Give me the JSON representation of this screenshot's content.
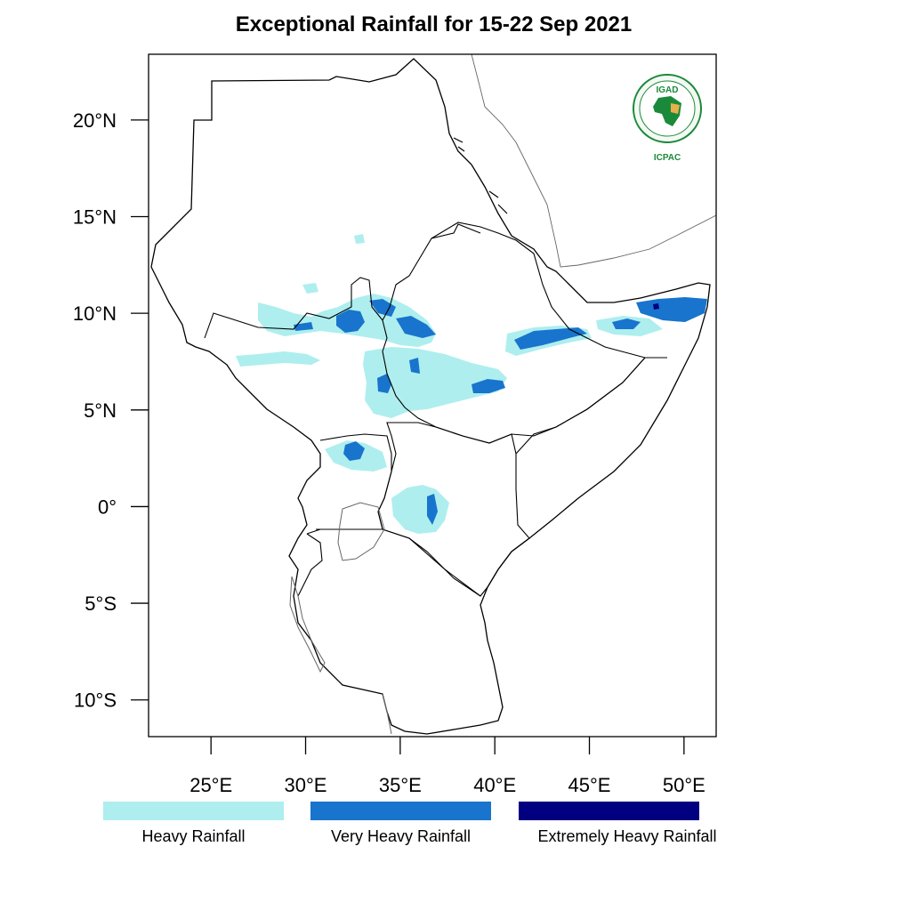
{
  "title": "Exceptional Rainfall for 15-22 Sep 2021",
  "y_ticks": [
    {
      "label": "20°N",
      "lat": 20
    },
    {
      "label": "15°N",
      "lat": 15
    },
    {
      "label": "10°N",
      "lat": 10
    },
    {
      "label": "5°N",
      "lat": 5
    },
    {
      "label": "0°",
      "lat": 0
    },
    {
      "label": "5°S",
      "lat": -5
    },
    {
      "label": "10°S",
      "lat": -10
    }
  ],
  "x_ticks": [
    {
      "label": "25°E",
      "lon": 25
    },
    {
      "label": "30°E",
      "lon": 30
    },
    {
      "label": "35°E",
      "lon": 35
    },
    {
      "label": "40°E",
      "lon": 40
    },
    {
      "label": "45°E",
      "lon": 45
    },
    {
      "label": "50°E",
      "lon": 50
    }
  ],
  "extent": {
    "lon_min": 21.7,
    "lon_max": 51.7,
    "lat_min": -11.9,
    "lat_max": 23.4
  },
  "legend": [
    {
      "label": "Heavy Rainfall",
      "color": "#aeeeee"
    },
    {
      "label": "Very Heavy Rainfall",
      "color": "#1874cd"
    },
    {
      "label": "Extremely Heavy Rainfall",
      "color": "#000080"
    }
  ],
  "logo": {
    "top_text": "IGAD",
    "bottom_text": "ICPAC",
    "color": "#1a8a3a"
  }
}
